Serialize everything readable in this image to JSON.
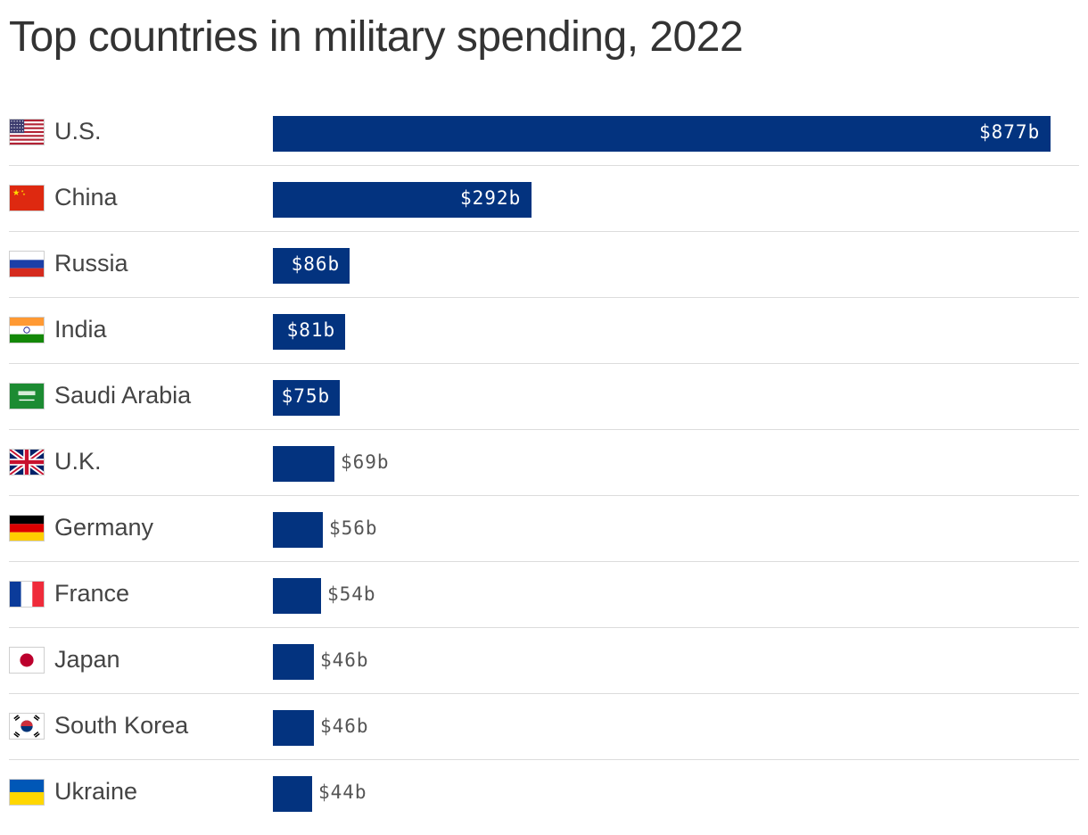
{
  "title": "Top countries in military spending, 2022",
  "colors": {
    "bar": "#03337f",
    "value_inside": "#ffffff",
    "value_outside": "#555555",
    "divider": "#dcdcdc"
  },
  "chart_data": {
    "type": "bar",
    "orientation": "horizontal",
    "title": "Top countries in military spending, 2022",
    "xlabel": "",
    "ylabel": "",
    "categories": [
      "U.S.",
      "China",
      "Russia",
      "India",
      "Saudi Arabia",
      "U.K.",
      "Germany",
      "France",
      "Japan",
      "South Korea",
      "Ukraine"
    ],
    "values": [
      877,
      292,
      86,
      81,
      75,
      69,
      56,
      54,
      46,
      46,
      44
    ],
    "value_labels": [
      "$877b",
      "$292b",
      "$86b",
      "$81b",
      "$75b",
      "$69b",
      "$56b",
      "$54b",
      "$46b",
      "$46b",
      "$44b"
    ],
    "flag_icons": [
      "us-flag-icon",
      "china-flag-icon",
      "russia-flag-icon",
      "india-flag-icon",
      "saudi-arabia-flag-icon",
      "uk-flag-icon",
      "germany-flag-icon",
      "france-flag-icon",
      "japan-flag-icon",
      "south-korea-flag-icon",
      "ukraine-flag-icon"
    ],
    "xlim": [
      0,
      877
    ],
    "grid": false,
    "legend": "none"
  }
}
